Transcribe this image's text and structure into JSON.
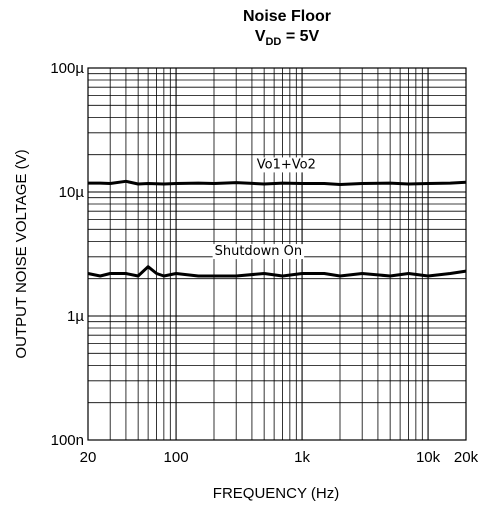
{
  "chart_data": {
    "type": "line",
    "title": "Noise Floor",
    "subtitle": {
      "prefix": "V",
      "sub": "DD",
      "suffix": " = 5V"
    },
    "xlabel": "FREQUENCY (Hz)",
    "ylabel": "OUTPUT NOISE VOLTAGE (V)",
    "x_scale": "log",
    "y_scale": "log",
    "xlim": [
      20,
      20000
    ],
    "ylim": [
      1e-07,
      0.0001
    ],
    "grid": true,
    "x_ticks": [
      {
        "value": 20,
        "label": "20"
      },
      {
        "value": 100,
        "label": "100"
      },
      {
        "value": 1000,
        "label": "1k"
      },
      {
        "value": 10000,
        "label": "10k"
      },
      {
        "value": 20000,
        "label": "20k"
      }
    ],
    "y_ticks": [
      {
        "value": 0.0001,
        "label": "100µ"
      },
      {
        "value": 1e-05,
        "label": "10µ"
      },
      {
        "value": 1e-06,
        "label": "1µ"
      },
      {
        "value": 1e-07,
        "label": "100n"
      }
    ],
    "series": [
      {
        "name": "Vo1+Vo2",
        "x": [
          20,
          25,
          30,
          40,
          50,
          60,
          80,
          100,
          150,
          200,
          300,
          500,
          700,
          1000,
          1500,
          2000,
          3000,
          5000,
          7000,
          10000,
          15000,
          20000
        ],
        "y": [
          1.18e-05,
          1.18e-05,
          1.17e-05,
          1.22e-05,
          1.16e-05,
          1.17e-05,
          1.16e-05,
          1.17e-05,
          1.18e-05,
          1.17e-05,
          1.19e-05,
          1.16e-05,
          1.18e-05,
          1.17e-05,
          1.17e-05,
          1.15e-05,
          1.17e-05,
          1.18e-05,
          1.16e-05,
          1.17e-05,
          1.18e-05,
          1.2e-05
        ]
      },
      {
        "name": "Shutdown On",
        "x": [
          20,
          25,
          30,
          40,
          50,
          60,
          70,
          80,
          100,
          150,
          200,
          300,
          500,
          700,
          1000,
          1500,
          2000,
          3000,
          5000,
          7000,
          10000,
          15000,
          20000
        ],
        "y": [
          2.2e-06,
          2.1e-06,
          2.2e-06,
          2.2e-06,
          2.1e-06,
          2.5e-06,
          2.2e-06,
          2.1e-06,
          2.2e-06,
          2.1e-06,
          2.1e-06,
          2.1e-06,
          2.2e-06,
          2.1e-06,
          2.2e-06,
          2.2e-06,
          2.1e-06,
          2.2e-06,
          2.1e-06,
          2.2e-06,
          2.1e-06,
          2.2e-06,
          2.3e-06
        ]
      }
    ],
    "annotations": [
      {
        "text": "Vo1+Vo2",
        "x": 750,
        "y": 1.55e-05
      },
      {
        "text": "Shutdown On",
        "x": 450,
        "y": 3.1e-06
      }
    ]
  }
}
